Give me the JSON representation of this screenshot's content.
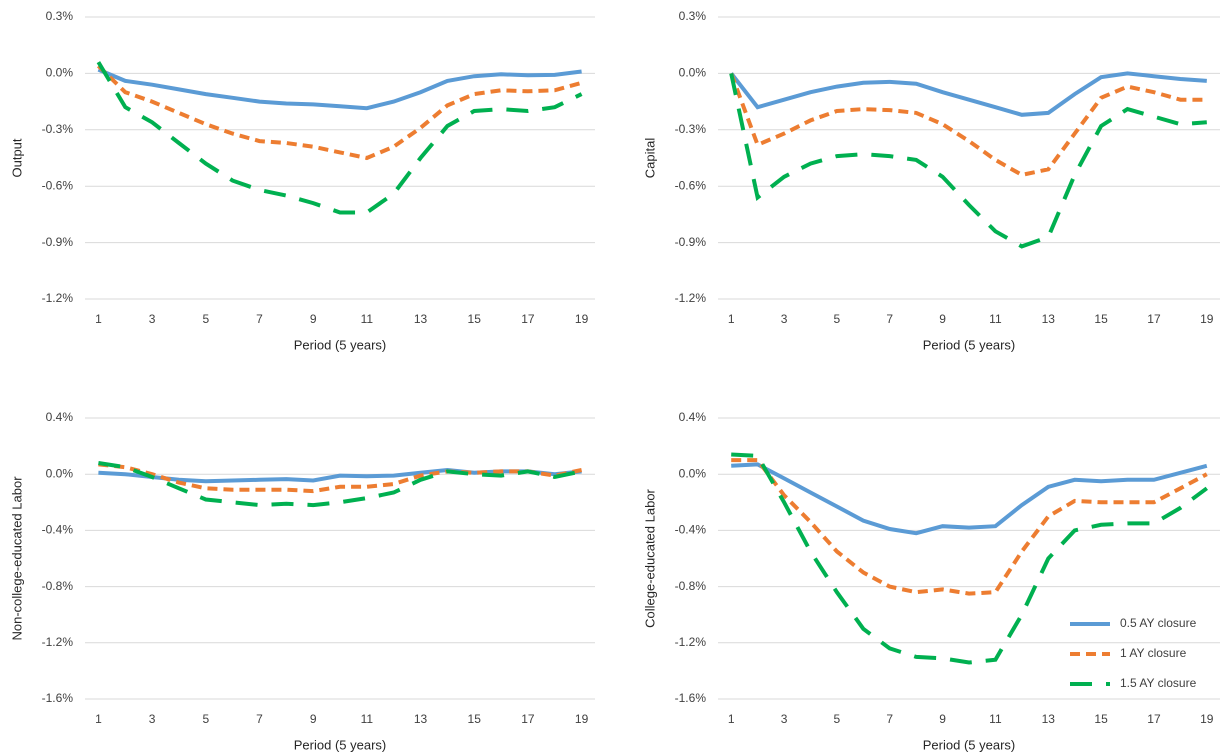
{
  "chart_data": [
    {
      "type": "line",
      "ylabel": "Output",
      "xlabel": "Period (5 years)",
      "x": [
        1,
        2,
        3,
        4,
        5,
        6,
        7,
        8,
        9,
        10,
        11,
        12,
        13,
        14,
        15,
        16,
        17,
        18,
        19
      ],
      "xlim": [
        0.5,
        19.5
      ],
      "xticks": [
        1,
        3,
        5,
        7,
        9,
        11,
        13,
        15,
        17,
        19
      ],
      "ylim": [
        -1.2,
        0.3
      ],
      "yticks": [
        {
          "value": 0.3,
          "label": "0.3%"
        },
        {
          "value": 0,
          "label": "0.0%"
        },
        {
          "value": -0.3,
          "label": "-0.3%"
        },
        {
          "value": -0.6,
          "label": "-0.6%"
        },
        {
          "value": -0.9,
          "label": "-0.9%"
        },
        {
          "value": -1.2,
          "label": "-1.2%"
        }
      ],
      "grid": true,
      "series": [
        {
          "color": "#5b9bd5",
          "dash": "solid",
          "values": [
            0.02,
            -0.04,
            -0.06,
            -0.085,
            -0.11,
            -0.13,
            -0.15,
            -0.16,
            -0.165,
            -0.175,
            -0.185,
            -0.15,
            -0.1,
            -0.04,
            -0.015,
            -0.005,
            -0.01,
            -0.008,
            0.01
          ]
        },
        {
          "color": "#ed7d31",
          "dash": "dash",
          "values": [
            0.04,
            -0.1,
            -0.15,
            -0.21,
            -0.27,
            -0.32,
            -0.36,
            -0.37,
            -0.39,
            -0.42,
            -0.45,
            -0.39,
            -0.29,
            -0.17,
            -0.11,
            -0.09,
            -0.095,
            -0.09,
            -0.05
          ]
        },
        {
          "color": "#00b050",
          "dash": "longdash",
          "values": [
            0.06,
            -0.18,
            -0.26,
            -0.37,
            -0.48,
            -0.57,
            -0.62,
            -0.65,
            -0.69,
            -0.74,
            -0.74,
            -0.64,
            -0.45,
            -0.28,
            -0.2,
            -0.19,
            -0.2,
            -0.18,
            -0.11
          ]
        }
      ]
    },
    {
      "type": "line",
      "ylabel": "Capital",
      "xlabel": "Period (5 years)",
      "x": [
        1,
        2,
        3,
        4,
        5,
        6,
        7,
        8,
        9,
        10,
        11,
        12,
        13,
        14,
        15,
        16,
        17,
        18,
        19
      ],
      "xlim": [
        0.5,
        19.5
      ],
      "xticks": [
        1,
        3,
        5,
        7,
        9,
        11,
        13,
        15,
        17,
        19
      ],
      "ylim": [
        -1.2,
        0.3
      ],
      "yticks": [
        {
          "value": 0.3,
          "label": "0.3%"
        },
        {
          "value": 0,
          "label": "0.0%"
        },
        {
          "value": -0.3,
          "label": "-0.3%"
        },
        {
          "value": -0.6,
          "label": "-0.6%"
        },
        {
          "value": -0.9,
          "label": "-0.9%"
        },
        {
          "value": -1.2,
          "label": "-1.2%"
        }
      ],
      "grid": true,
      "series": [
        {
          "color": "#5b9bd5",
          "dash": "solid",
          "values": [
            0,
            -0.18,
            -0.14,
            -0.1,
            -0.07,
            -0.05,
            -0.045,
            -0.055,
            -0.1,
            -0.14,
            -0.18,
            -0.22,
            -0.21,
            -0.11,
            -0.02,
            0,
            -0.015,
            -0.03,
            -0.04
          ]
        },
        {
          "color": "#ed7d31",
          "dash": "dash",
          "values": [
            0,
            -0.38,
            -0.32,
            -0.25,
            -0.2,
            -0.19,
            -0.195,
            -0.21,
            -0.27,
            -0.36,
            -0.46,
            -0.54,
            -0.51,
            -0.32,
            -0.13,
            -0.07,
            -0.1,
            -0.14,
            -0.14
          ]
        },
        {
          "color": "#00b050",
          "dash": "longdash",
          "values": [
            0,
            -0.66,
            -0.55,
            -0.48,
            -0.44,
            -0.43,
            -0.44,
            -0.46,
            -0.55,
            -0.7,
            -0.84,
            -0.92,
            -0.87,
            -0.54,
            -0.28,
            -0.19,
            -0.23,
            -0.27,
            -0.26
          ]
        }
      ]
    },
    {
      "type": "line",
      "ylabel": "Non-college-educated Labor",
      "xlabel": "Period (5 years)",
      "x": [
        1,
        2,
        3,
        4,
        5,
        6,
        7,
        8,
        9,
        10,
        11,
        12,
        13,
        14,
        15,
        16,
        17,
        18,
        19
      ],
      "xlim": [
        0.5,
        19.5
      ],
      "xticks": [
        1,
        3,
        5,
        7,
        9,
        11,
        13,
        15,
        17,
        19
      ],
      "ylim": [
        -1.6,
        0.4
      ],
      "yticks": [
        {
          "value": 0.4,
          "label": "0.4%"
        },
        {
          "value": 0,
          "label": "0.0%"
        },
        {
          "value": -0.4,
          "label": "-0.4%"
        },
        {
          "value": -0.8,
          "label": "-0.8%"
        },
        {
          "value": -1.2,
          "label": "-1.2%"
        },
        {
          "value": -1.6,
          "label": "-1.6%"
        }
      ],
      "grid": true,
      "series": [
        {
          "color": "#5b9bd5",
          "dash": "solid",
          "values": [
            0.01,
            0,
            -0.02,
            -0.04,
            -0.05,
            -0.045,
            -0.04,
            -0.035,
            -0.045,
            -0.01,
            -0.015,
            -0.01,
            0.01,
            0.03,
            0.01,
            0.02,
            0.02,
            0,
            0.02
          ]
        },
        {
          "color": "#ed7d31",
          "dash": "dash",
          "values": [
            0.07,
            0.05,
            0,
            -0.06,
            -0.1,
            -0.11,
            -0.11,
            -0.11,
            -0.12,
            -0.09,
            -0.09,
            -0.07,
            -0.01,
            0.02,
            0.01,
            0.02,
            0.02,
            -0.01,
            0.03
          ]
        },
        {
          "color": "#00b050",
          "dash": "longdash",
          "values": [
            0.08,
            0.05,
            -0.02,
            -0.1,
            -0.18,
            -0.2,
            -0.22,
            -0.21,
            -0.22,
            -0.2,
            -0.17,
            -0.13,
            -0.04,
            0.02,
            0,
            -0.01,
            0.02,
            -0.02,
            0.02
          ]
        }
      ]
    },
    {
      "type": "line",
      "ylabel": "College-educated Labor",
      "xlabel": "Period (5 years)",
      "x": [
        1,
        2,
        3,
        4,
        5,
        6,
        7,
        8,
        9,
        10,
        11,
        12,
        13,
        14,
        15,
        16,
        17,
        18,
        19
      ],
      "xlim": [
        0.5,
        19.5
      ],
      "xticks": [
        1,
        3,
        5,
        7,
        9,
        11,
        13,
        15,
        17,
        19
      ],
      "ylim": [
        -1.6,
        0.4
      ],
      "yticks": [
        {
          "value": 0.4,
          "label": "0.4%"
        },
        {
          "value": 0,
          "label": "0.0%"
        },
        {
          "value": -0.4,
          "label": "-0.4%"
        },
        {
          "value": -0.8,
          "label": "-0.8%"
        },
        {
          "value": -1.2,
          "label": "-1.2%"
        },
        {
          "value": -1.6,
          "label": "-1.6%"
        }
      ],
      "grid": true,
      "legend": "bottom-right",
      "series": [
        {
          "name": "0.5 AY closure",
          "color": "#5b9bd5",
          "dash": "solid",
          "values": [
            0.06,
            0.07,
            -0.03,
            -0.13,
            -0.23,
            -0.33,
            -0.39,
            -0.42,
            -0.37,
            -0.38,
            -0.37,
            -0.22,
            -0.09,
            -0.04,
            -0.05,
            -0.04,
            -0.04,
            0.01,
            0.06
          ]
        },
        {
          "name": "1 AY closure",
          "color": "#ed7d31",
          "dash": "dash",
          "values": [
            0.1,
            0.1,
            -0.15,
            -0.34,
            -0.55,
            -0.7,
            -0.8,
            -0.84,
            -0.82,
            -0.85,
            -0.84,
            -0.55,
            -0.3,
            -0.19,
            -0.2,
            -0.2,
            -0.2,
            -0.1,
            0
          ]
        },
        {
          "name": "1.5 AY closure",
          "color": "#00b050",
          "dash": "longdash",
          "values": [
            0.14,
            0.13,
            -0.2,
            -0.55,
            -0.84,
            -1.1,
            -1.24,
            -1.3,
            -1.31,
            -1.34,
            -1.32,
            -1,
            -0.6,
            -0.4,
            -0.36,
            -0.35,
            -0.35,
            -0.24,
            -0.1
          ]
        }
      ]
    }
  ]
}
